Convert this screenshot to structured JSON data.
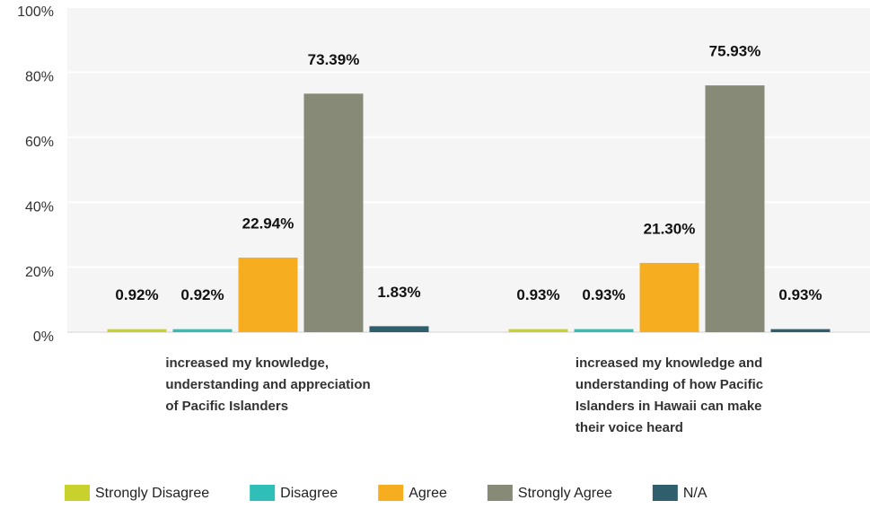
{
  "chart_data": {
    "type": "bar",
    "categories": [
      "increased my knowledge, understanding and appreciation of Pacific Islanders",
      "increased my knowledge and understanding of how Pacific Islanders in Hawaii can make their voice heard"
    ],
    "series": [
      {
        "name": "Strongly Disagree",
        "color": "#c9d22d",
        "values": [
          0.92,
          0.93
        ],
        "value_labels": [
          "0.92%",
          "0.93%"
        ]
      },
      {
        "name": "Disagree",
        "color": "#2fbfb8",
        "values": [
          0.92,
          0.93
        ],
        "value_labels": [
          "0.92%",
          "0.93%"
        ]
      },
      {
        "name": "Agree",
        "color": "#f6ae20",
        "values": [
          22.94,
          21.3
        ],
        "value_labels": [
          "22.94%",
          "21.30%"
        ]
      },
      {
        "name": "Strongly Agree",
        "color": "#878a77",
        "values": [
          73.39,
          75.93
        ],
        "value_labels": [
          "73.39%",
          "75.93%"
        ]
      },
      {
        "name": "N/A",
        "color": "#2f5f6d",
        "values": [
          1.83,
          0.93
        ],
        "value_labels": [
          "1.83%",
          "0.93%"
        ]
      }
    ],
    "ylim": [
      0,
      100
    ],
    "yticks": [
      {
        "value": 0,
        "label": "0%"
      },
      {
        "value": 20,
        "label": "20%"
      },
      {
        "value": 40,
        "label": "40%"
      },
      {
        "value": 60,
        "label": "60%"
      },
      {
        "value": 80,
        "label": "80%"
      },
      {
        "value": 100,
        "label": "100%"
      }
    ],
    "grid": true,
    "legend": "bottom"
  }
}
